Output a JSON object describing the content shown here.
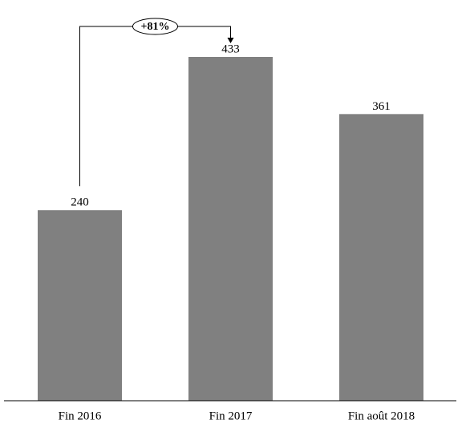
{
  "chart_data": {
    "type": "bar",
    "categories": [
      "Fin 2016",
      "Fin 2017",
      "Fin août 2018"
    ],
    "values": [
      240,
      433,
      361
    ],
    "color": "#808080",
    "annotation": "+81%"
  }
}
